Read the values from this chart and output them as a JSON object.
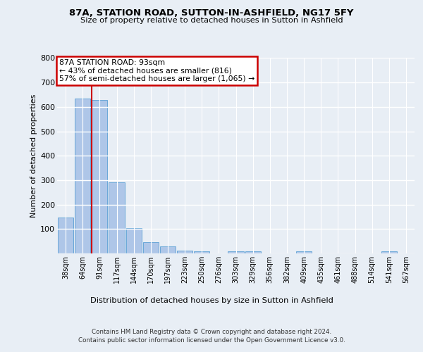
{
  "title1": "87A, STATION ROAD, SUTTON-IN-ASHFIELD, NG17 5FY",
  "title2": "Size of property relative to detached houses in Sutton in Ashfield",
  "xlabel": "Distribution of detached houses by size in Sutton in Ashfield",
  "ylabel": "Number of detached properties",
  "categories": [
    "38sqm",
    "64sqm",
    "91sqm",
    "117sqm",
    "144sqm",
    "170sqm",
    "197sqm",
    "223sqm",
    "250sqm",
    "276sqm",
    "303sqm",
    "329sqm",
    "356sqm",
    "382sqm",
    "409sqm",
    "435sqm",
    "461sqm",
    "488sqm",
    "514sqm",
    "541sqm",
    "567sqm"
  ],
  "values": [
    148,
    635,
    628,
    290,
    103,
    45,
    30,
    12,
    8,
    0,
    8,
    8,
    0,
    0,
    8,
    0,
    0,
    0,
    0,
    8,
    0
  ],
  "bar_color": "#aec6e8",
  "bar_edge_color": "#5a9fd4",
  "vline_x_idx": 2,
  "vline_color": "#cc0000",
  "annotation_box_text": "87A STATION ROAD: 93sqm\n← 43% of detached houses are smaller (816)\n57% of semi-detached houses are larger (1,065) →",
  "annotation_box_color": "#cc0000",
  "annotation_box_bg": "#ffffff",
  "footer1": "Contains HM Land Registry data © Crown copyright and database right 2024.",
  "footer2": "Contains public sector information licensed under the Open Government Licence v3.0.",
  "bg_color": "#e8eef5",
  "plot_bg_color": "#e8eef5",
  "grid_color": "#ffffff",
  "ylim": [
    0,
    800
  ],
  "yticks": [
    0,
    100,
    200,
    300,
    400,
    500,
    600,
    700,
    800
  ]
}
